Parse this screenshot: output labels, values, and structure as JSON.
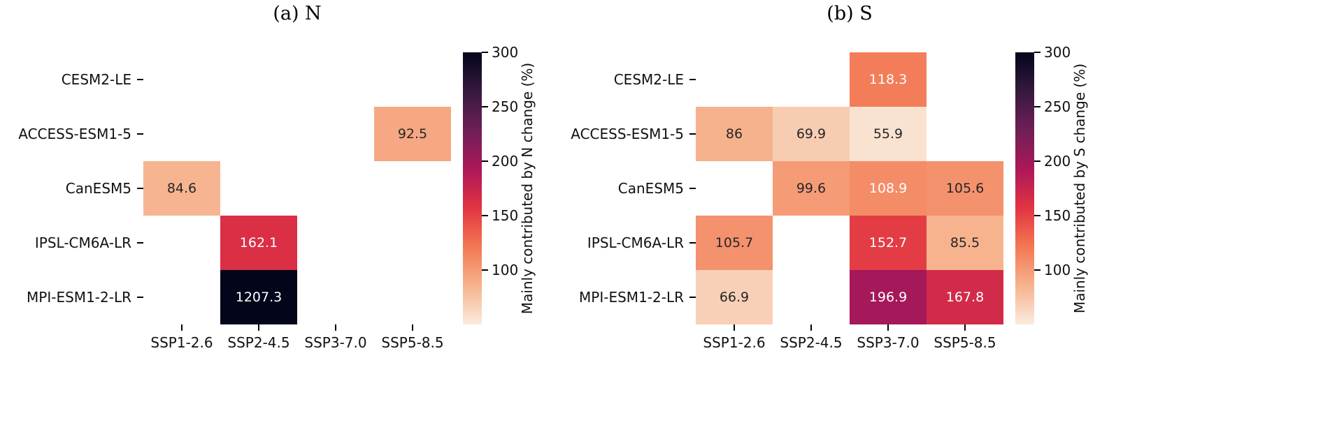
{
  "figure": {
    "background": "#ffffff"
  },
  "chart_data": [
    {
      "type": "heatmap",
      "title": "(a) N",
      "rows": [
        "CESM2-LE",
        "ACCESS-ESM1-5",
        "CanESM5",
        "IPSL-CM6A-LR",
        "MPI-ESM1-2-LR"
      ],
      "columns": [
        "SSP1-2.6",
        "SSP2-4.5",
        "SSP3-7.0",
        "SSP5-8.5"
      ],
      "values": [
        [
          null,
          null,
          null,
          null
        ],
        [
          null,
          null,
          null,
          92.5
        ],
        [
          84.6,
          null,
          null,
          null
        ],
        [
          null,
          162.1,
          null,
          null
        ],
        [
          null,
          1207.3,
          null,
          null
        ]
      ],
      "colorbar": {
        "label": "Mainly contributed by N change (%)",
        "ticks": [
          300,
          250,
          200,
          150,
          100
        ],
        "vmin": 50,
        "vmax": 300
      }
    },
    {
      "type": "heatmap",
      "title": "(b) S",
      "rows": [
        "CESM2-LE",
        "ACCESS-ESM1-5",
        "CanESM5",
        "IPSL-CM6A-LR",
        "MPI-ESM1-2-LR"
      ],
      "columns": [
        "SSP1-2.6",
        "SSP2-4.5",
        "SSP3-7.0",
        "SSP5-8.5"
      ],
      "values": [
        [
          null,
          null,
          118.3,
          null
        ],
        [
          86,
          69.9,
          55.9,
          null
        ],
        [
          null,
          99.6,
          108.9,
          105.6
        ],
        [
          105.7,
          null,
          152.7,
          85.5
        ],
        [
          66.9,
          null,
          196.9,
          167.8
        ]
      ],
      "colorbar": {
        "label": "Mainly contributed by S change (%)",
        "ticks": [
          300,
          250,
          200,
          150,
          100
        ],
        "vmin": 50,
        "vmax": 300
      }
    }
  ],
  "colormap": {
    "name": "rocket_r",
    "anchors": [
      0,
      0.14,
      0.29,
      0.43,
      0.57,
      0.71,
      0.86,
      1
    ],
    "colors": [
      "#FAEBDD",
      "#F6B48F",
      "#F37651",
      "#E13342",
      "#AD1759",
      "#701F57",
      "#35193E",
      "#03051A"
    ]
  },
  "annotation_text": {
    "light": "#FFFFFF",
    "dark": "#262626",
    "luminance_threshold": 0.408
  }
}
